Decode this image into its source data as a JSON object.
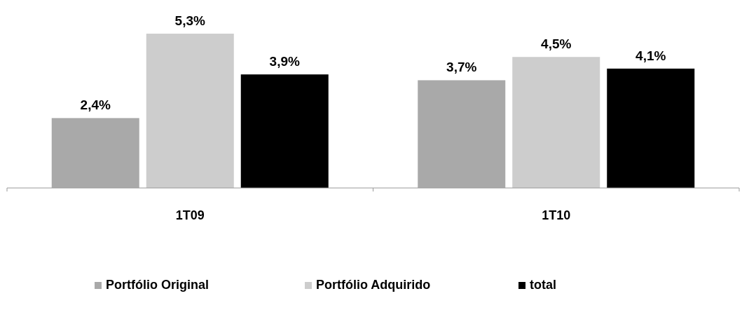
{
  "chart_data": {
    "type": "bar",
    "categories": [
      "1T09",
      "1T10"
    ],
    "series": [
      {
        "name": "Portfólio Original",
        "color": "#a9a9a9",
        "values": [
          2.4,
          3.7
        ],
        "value_labels": [
          "2,4%",
          "3,7%"
        ]
      },
      {
        "name": "Portfólio Adquirido",
        "color": "#cdcdcd",
        "values": [
          5.3,
          4.5
        ],
        "value_labels": [
          "5,3%",
          "4,5%"
        ]
      },
      {
        "name": "total",
        "color": "#000000",
        "values": [
          3.9,
          4.1
        ],
        "value_labels": [
          "3,9%",
          "4,1%"
        ]
      }
    ],
    "legend": "bottom"
  }
}
